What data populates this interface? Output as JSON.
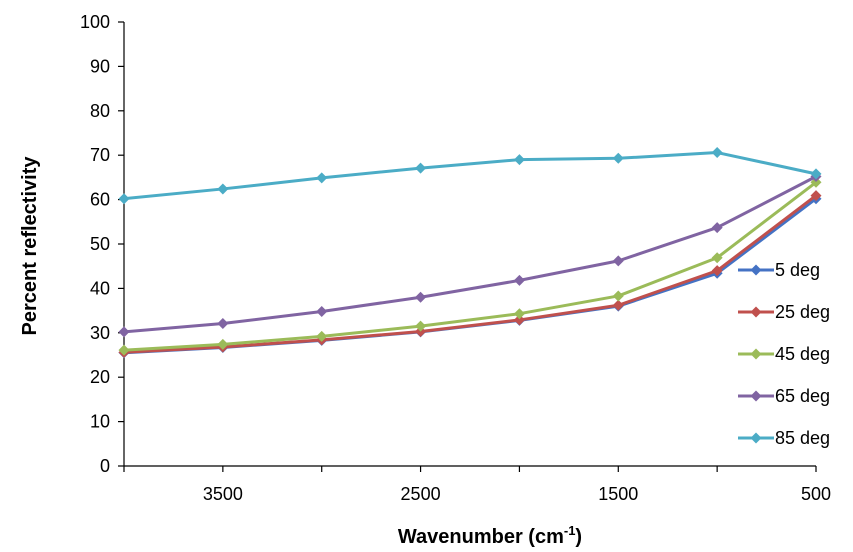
{
  "chart_data": {
    "type": "line",
    "title": "",
    "xlabel": "Wavenumber (cm",
    "xlabel_sup": "-1",
    "xlabel_tail": ")",
    "ylabel": "Percent reflectivity",
    "xlim": [
      4000,
      500
    ],
    "ylim": [
      0,
      100
    ],
    "x_reversed": true,
    "x_ticks": [
      3500,
      2500,
      1500,
      500
    ],
    "x_tick_labels": [
      "3500",
      "2500",
      "1500",
      "500"
    ],
    "y_ticks": [
      0,
      10,
      20,
      30,
      40,
      50,
      60,
      70,
      80,
      90,
      100
    ],
    "y_tick_labels": [
      "0",
      "10",
      "20",
      "30",
      "40",
      "50",
      "60",
      "70",
      "80",
      "90",
      "100"
    ],
    "grid": false,
    "legend_position": "right",
    "x": [
      4000,
      3500,
      3000,
      2500,
      2000,
      1500,
      1000,
      500
    ],
    "series": [
      {
        "name": "5 deg",
        "color": "#4472C4",
        "values": [
          25.5,
          26.7,
          28.3,
          30.2,
          32.8,
          36.0,
          43.4,
          60.2
        ]
      },
      {
        "name": "25 deg",
        "color": "#C0504D",
        "values": [
          25.6,
          26.8,
          28.4,
          30.3,
          32.9,
          36.2,
          44.0,
          60.9
        ]
      },
      {
        "name": "45 deg",
        "color": "#9BBB59",
        "values": [
          26.1,
          27.4,
          29.2,
          31.5,
          34.3,
          38.3,
          46.9,
          63.9
        ]
      },
      {
        "name": "65 deg",
        "color": "#8064A2",
        "values": [
          30.2,
          32.1,
          34.8,
          38.0,
          41.8,
          46.2,
          53.7,
          65.2
        ]
      },
      {
        "name": "85 deg",
        "color": "#4BACC6",
        "values": [
          60.2,
          62.4,
          64.9,
          67.1,
          69.0,
          69.3,
          70.6,
          65.8
        ]
      }
    ]
  }
}
